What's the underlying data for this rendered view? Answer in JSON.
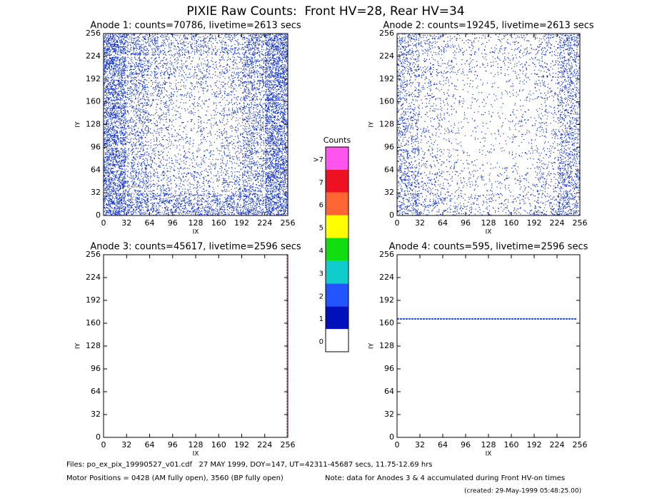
{
  "title": "PIXIE Raw Counts:  Front HV=28, Rear HV=34",
  "chart_data": [
    {
      "type": "heatmap",
      "title": "Anode 1: counts=70786, livetime=2613 secs",
      "xlabel": "IX",
      "ylabel": "IY",
      "xlim": [
        0,
        256
      ],
      "ylim": [
        0,
        256
      ],
      "xticks": [
        0,
        32,
        64,
        96,
        128,
        160,
        192,
        224,
        256
      ],
      "yticks": [
        0,
        32,
        64,
        96,
        128,
        160,
        192,
        224,
        256
      ],
      "color": "#1133cc",
      "density": [
        [
          0.9,
          0.6,
          0.5,
          0.5,
          0.5,
          0.5,
          0.6,
          0.9
        ],
        [
          0.8,
          0.4,
          0.25,
          0.2,
          0.2,
          0.25,
          0.45,
          0.8
        ],
        [
          0.8,
          0.35,
          0.2,
          0.15,
          0.15,
          0.2,
          0.4,
          0.8
        ],
        [
          0.8,
          0.35,
          0.2,
          0.12,
          0.12,
          0.2,
          0.4,
          0.8
        ],
        [
          0.8,
          0.35,
          0.2,
          0.12,
          0.12,
          0.2,
          0.4,
          0.8
        ],
        [
          0.8,
          0.4,
          0.25,
          0.15,
          0.15,
          0.2,
          0.45,
          0.8
        ],
        [
          0.85,
          0.45,
          0.3,
          0.2,
          0.2,
          0.25,
          0.5,
          0.85
        ],
        [
          0.9,
          0.5,
          0.35,
          0.3,
          0.3,
          0.3,
          0.55,
          0.9
        ]
      ]
    },
    {
      "type": "heatmap",
      "title": "Anode 2: counts=19245, livetime=2613 secs",
      "xlabel": "IX",
      "ylabel": "IY",
      "xlim": [
        0,
        256
      ],
      "ylim": [
        0,
        256
      ],
      "xticks": [
        0,
        32,
        64,
        96,
        128,
        160,
        192,
        224,
        256
      ],
      "yticks": [
        0,
        32,
        64,
        96,
        128,
        160,
        192,
        224,
        256
      ],
      "color": "#1133cc",
      "density": [
        [
          0.45,
          0.25,
          0.2,
          0.15,
          0.15,
          0.15,
          0.25,
          0.5
        ],
        [
          0.4,
          0.2,
          0.12,
          0.1,
          0.1,
          0.1,
          0.2,
          0.45
        ],
        [
          0.35,
          0.15,
          0.1,
          0.06,
          0.06,
          0.08,
          0.15,
          0.4
        ],
        [
          0.3,
          0.12,
          0.08,
          0.05,
          0.05,
          0.08,
          0.12,
          0.35
        ],
        [
          0.3,
          0.12,
          0.08,
          0.05,
          0.05,
          0.08,
          0.12,
          0.35
        ],
        [
          0.3,
          0.15,
          0.1,
          0.06,
          0.06,
          0.08,
          0.15,
          0.35
        ],
        [
          0.35,
          0.18,
          0.12,
          0.1,
          0.1,
          0.12,
          0.18,
          0.4
        ],
        [
          0.4,
          0.22,
          0.15,
          0.12,
          0.12,
          0.15,
          0.22,
          0.45
        ]
      ]
    },
    {
      "type": "heatmap",
      "title": "Anode 3: counts=45617, livetime=2596 secs",
      "xlabel": "IX",
      "ylabel": "IY",
      "xlim": [
        0,
        256
      ],
      "ylim": [
        0,
        256
      ],
      "xticks": [
        0,
        32,
        64,
        96,
        128,
        160,
        192,
        224,
        256
      ],
      "yticks": [
        0,
        32,
        64,
        96,
        128,
        160,
        192,
        224,
        256
      ],
      "color": "#1133cc",
      "line": {
        "axis": "x",
        "value": 255,
        "color": "#ff55ee"
      }
    },
    {
      "type": "heatmap",
      "title": "Anode 4: counts=595, livetime=2596 secs",
      "xlabel": "IX",
      "ylabel": "IY",
      "xlim": [
        0,
        256
      ],
      "ylim": [
        0,
        256
      ],
      "xticks": [
        0,
        32,
        64,
        96,
        128,
        160,
        192,
        224,
        256
      ],
      "yticks": [
        0,
        32,
        64,
        96,
        128,
        160,
        192,
        224,
        256
      ],
      "color": "#1133cc",
      "line": {
        "axis": "y",
        "value": 166,
        "color": "#3355cc"
      }
    }
  ],
  "colorbar": {
    "title": "Counts",
    "labels": [
      "0",
      "1",
      "2",
      "3",
      "4",
      "5",
      "6",
      "7",
      ">7"
    ],
    "colors": [
      "#ffffff",
      "#0011bb",
      "#2255ff",
      "#11cccc",
      "#11dd11",
      "#ffff00",
      "#ff6633",
      "#ee1122",
      "#ff55ee"
    ]
  },
  "footer": {
    "files": "Files: po_ex_pix_19990527_v01.cdf   27 MAY 1999, DOY=147, UT=42311-45687 secs, 11.75-12.69 hrs",
    "motor": "Motor Positions = 0428 (AM fully open), 3560 (BP fully open)",
    "note": "Note: data for Anodes 3 & 4 accumulated during Front HV-on times",
    "created": "(created: 29-May-1999 05:48:25.00)"
  }
}
